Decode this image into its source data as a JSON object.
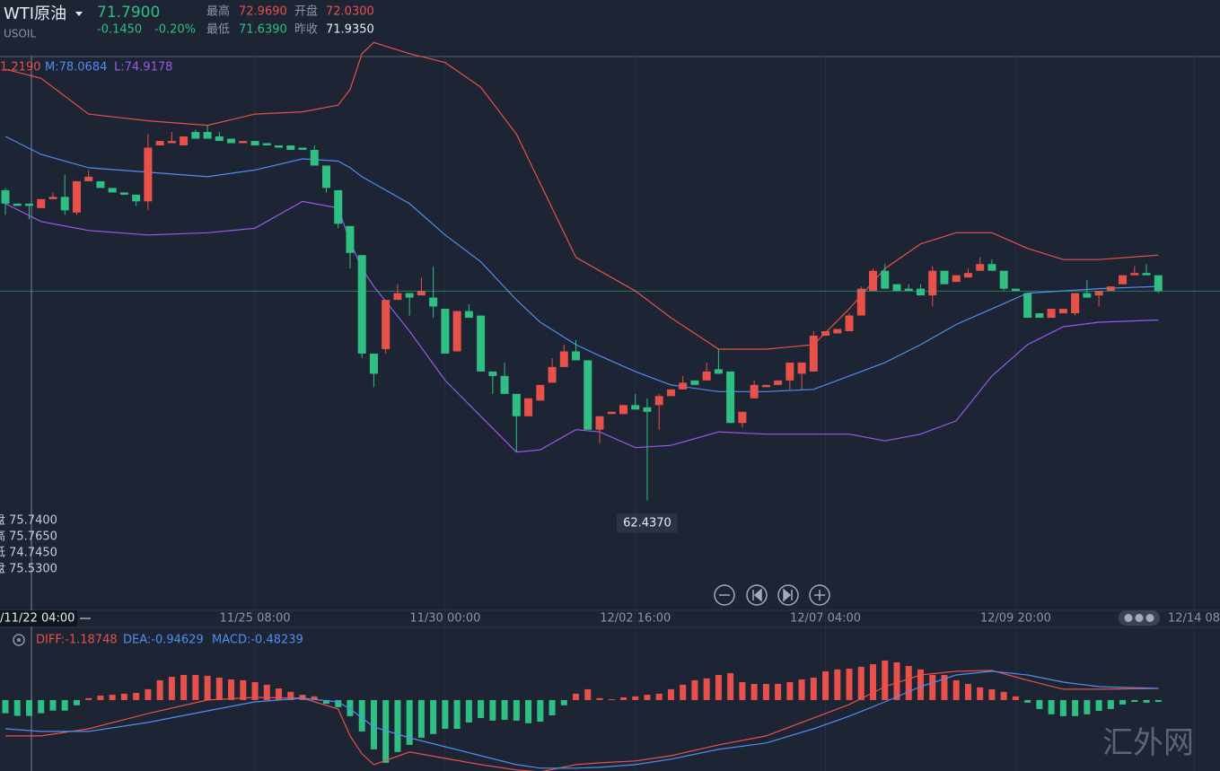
{
  "header": {
    "name": "WTI原油",
    "symbol": "USOIL",
    "price": "71.7900",
    "change": "-0.1450",
    "change_pct": "-0.20%",
    "high_label": "最高",
    "high": "72.9690",
    "open_label": "开盘",
    "open": "72.0300",
    "low_label": "最低",
    "low": "71.6390",
    "prev_label": "昨收",
    "prev": "71.9350"
  },
  "crosshair": {
    "x_label": "/11/22 04:00",
    "lines": [
      "盘 75.7400",
      "高 75.7650",
      "低 74.7450",
      "盘 75.5300"
    ]
  },
  "watermark": "汇外网",
  "chart_data": [
    {
      "type": "candlestick",
      "up_color": "#e8514a",
      "down_color": "#2fbf83",
      "ylim": [
        57.53,
        82.27
      ],
      "xticks": [
        {
          "value": 21,
          "label": "11/25 08:00"
        },
        {
          "value": 37,
          "label": "11/30 00:00"
        },
        {
          "value": 53,
          "label": "12/02 16:00"
        },
        {
          "value": 69,
          "label": "12/07 04:00"
        },
        {
          "value": 85,
          "label": "12/09 20:00"
        },
        {
          "value": 100,
          "label": "12/14 08"
        }
      ],
      "open": [
        76.3,
        75.7,
        75.7,
        75.5,
        75.9,
        76.0,
        75.3,
        76.7,
        76.7,
        76.4,
        76.2,
        76.1,
        75.8,
        78.3,
        78.4,
        78.3,
        78.9,
        78.9,
        78.7,
        78.6,
        78.4,
        78.5,
        78.4,
        78.3,
        78.3,
        78.2,
        78.1,
        77.4,
        76.3,
        74.7,
        73.4,
        69.0,
        69.2,
        71.4,
        71.7,
        71.6,
        71.5,
        71.0,
        69.1,
        70.9,
        70.7,
        68.2,
        68.0,
        67.2,
        66.2,
        66.9,
        67.7,
        68.4,
        69.1,
        68.7,
        65.6,
        66.3,
        66.3,
        66.7,
        66.6,
        66.7,
        67.1,
        67.4,
        67.8,
        67.8,
        68.3,
        68.2,
        65.9,
        67.0,
        67.5,
        67.6,
        67.8,
        68.1,
        68.2,
        69.8,
        69.9,
        70.0,
        70.7,
        71.8,
        72.7,
        72.1,
        71.9,
        71.9,
        71.6,
        72.7,
        72.2,
        72.4,
        72.7,
        73.0,
        72.7,
        71.9,
        71.7,
        70.8,
        70.6,
        70.8,
        70.8,
        71.7,
        71.6,
        71.8,
        72.1,
        72.5,
        72.6,
        72.5
      ],
      "high": [
        76.4,
        75.7,
        75.7,
        75.9,
        76.2,
        77.0,
        76.7,
        77.2,
        76.7,
        76.4,
        76.2,
        76.1,
        78.8,
        78.5,
        78.9,
        78.7,
        79.0,
        79.2,
        78.9,
        78.6,
        78.5,
        78.5,
        78.4,
        78.3,
        78.3,
        78.2,
        78.3,
        77.4,
        76.3,
        74.7,
        73.4,
        69.0,
        71.4,
        72.1,
        71.7,
        72.4,
        72.9,
        71.0,
        70.9,
        71.2,
        70.7,
        68.2,
        68.6,
        67.2,
        67.0,
        67.6,
        68.8,
        69.4,
        69.6,
        68.7,
        66.2,
        66.4,
        66.7,
        67.2,
        67.0,
        67.2,
        67.4,
        68.0,
        67.8,
        68.6,
        69.2,
        68.2,
        66.4,
        67.8,
        67.6,
        67.8,
        68.6,
        68.6,
        70.0,
        70.0,
        70.1,
        70.8,
        72.0,
        72.8,
        73.0,
        72.1,
        72.1,
        72.1,
        72.9,
        72.7,
        72.5,
        72.8,
        73.3,
        73.2,
        72.7,
        71.9,
        71.7,
        70.8,
        71.0,
        71.0,
        71.7,
        72.3,
        71.8,
        72.0,
        72.5,
        72.9,
        73.0,
        72.5
      ],
      "low": [
        75.2,
        75.6,
        75.0,
        75.5,
        75.9,
        75.2,
        75.2,
        76.7,
        76.4,
        76.2,
        76.1,
        75.6,
        75.4,
        78.3,
        78.4,
        78.3,
        78.6,
        78.6,
        78.5,
        78.4,
        78.4,
        78.3,
        78.3,
        78.2,
        78.1,
        78.1,
        77.4,
        76.2,
        74.6,
        72.8,
        68.8,
        67.5,
        69.0,
        71.4,
        70.7,
        71.6,
        70.6,
        69.0,
        69.1,
        70.6,
        68.2,
        67.2,
        67.2,
        64.6,
        66.2,
        66.9,
        67.7,
        68.4,
        68.7,
        65.6,
        65.0,
        66.3,
        66.3,
        66.5,
        62.437,
        65.6,
        67.1,
        67.4,
        67.6,
        67.8,
        68.1,
        65.9,
        65.7,
        67.0,
        67.5,
        67.6,
        67.4,
        67.4,
        68.2,
        69.8,
        69.9,
        70.0,
        70.7,
        71.8,
        71.9,
        71.8,
        71.8,
        71.6,
        71.1,
        72.1,
        72.2,
        72.4,
        72.7,
        72.7,
        71.8,
        71.8,
        70.6,
        70.6,
        70.6,
        70.8,
        70.7,
        71.5,
        71.1,
        71.8,
        72.1,
        72.5,
        72.5,
        71.7
      ],
      "close": [
        75.7,
        75.6,
        75.6,
        75.9,
        76.0,
        75.4,
        76.7,
        76.9,
        76.4,
        76.2,
        76.1,
        75.8,
        78.2,
        78.5,
        78.5,
        78.7,
        78.6,
        78.6,
        78.5,
        78.4,
        78.5,
        78.3,
        78.3,
        78.2,
        78.1,
        78.1,
        77.4,
        76.4,
        74.8,
        73.5,
        69.0,
        68.1,
        71.4,
        71.7,
        71.5,
        71.8,
        71.1,
        69.0,
        70.9,
        70.6,
        68.2,
        68.0,
        67.2,
        66.2,
        67.0,
        67.6,
        68.4,
        69.1,
        68.7,
        65.6,
        66.2,
        66.4,
        66.7,
        66.5,
        66.4,
        67.1,
        67.4,
        67.7,
        67.6,
        68.2,
        68.1,
        65.9,
        66.4,
        67.6,
        67.6,
        67.8,
        68.6,
        68.6,
        69.8,
        70.0,
        70.1,
        70.7,
        71.9,
        72.7,
        71.9,
        71.8,
        71.8,
        71.6,
        72.7,
        72.1,
        72.5,
        72.6,
        73.0,
        72.7,
        71.9,
        71.8,
        70.6,
        70.6,
        71.0,
        71.0,
        71.7,
        71.5,
        71.8,
        72.0,
        72.5,
        72.6,
        72.5,
        71.79
      ],
      "low_label": "62.4370",
      "series": [
        {
          "name": "1.2190",
          "color": "#e8514a",
          "x": [
            0,
            3,
            7,
            12,
            17,
            21,
            25,
            28,
            29,
            30,
            31,
            34,
            37,
            40,
            43,
            45,
            48,
            50,
            53,
            56,
            60,
            64,
            68,
            71,
            74,
            77,
            80,
            83,
            86,
            89,
            92,
            97
          ],
          "values": [
            81.7,
            81.3,
            79.7,
            79.4,
            79.2,
            79.7,
            79.8,
            80.1,
            80.8,
            82.4,
            82.9,
            82.4,
            82.0,
            80.9,
            78.8,
            76.6,
            73.3,
            72.7,
            71.8,
            70.6,
            69.2,
            69.2,
            69.4,
            71.0,
            72.8,
            73.9,
            74.4,
            74.4,
            73.7,
            73.2,
            73.2,
            73.4
          ]
        },
        {
          "name": "M:78.0684",
          "color": "#4f8ef0",
          "x": [
            0,
            3,
            7,
            12,
            17,
            21,
            25,
            28,
            29,
            30,
            31,
            34,
            37,
            40,
            43,
            45,
            48,
            50,
            53,
            56,
            60,
            64,
            68,
            71,
            74,
            77,
            80,
            83,
            86,
            89,
            92,
            97
          ],
          "values": [
            78.7,
            77.9,
            77.3,
            77.1,
            76.9,
            77.2,
            77.7,
            77.6,
            77.3,
            76.9,
            76.6,
            75.7,
            74.3,
            73.1,
            71.4,
            70.4,
            69.4,
            68.9,
            68.2,
            67.6,
            67.3,
            67.3,
            67.4,
            68.0,
            68.6,
            69.4,
            70.3,
            71.0,
            71.7,
            71.8,
            71.9,
            72.0
          ]
        },
        {
          "name": "L:74.9178",
          "color": "#9b59f0",
          "x": [
            0,
            3,
            7,
            12,
            17,
            21,
            25,
            28,
            29,
            30,
            31,
            34,
            37,
            40,
            43,
            45,
            48,
            50,
            53,
            56,
            60,
            64,
            68,
            71,
            74,
            77,
            80,
            83,
            86,
            89,
            92,
            97
          ],
          "values": [
            75.7,
            74.9,
            74.5,
            74.3,
            74.4,
            74.6,
            75.8,
            75.5,
            74.0,
            72.8,
            72.0,
            70.0,
            67.8,
            66.2,
            64.6,
            64.7,
            65.6,
            65.5,
            64.8,
            64.9,
            65.5,
            65.4,
            65.4,
            65.4,
            65.1,
            65.4,
            66.0,
            68.0,
            69.4,
            70.2,
            70.4,
            70.5
          ]
        }
      ]
    },
    {
      "type": "macd",
      "up_color": "#e8514a",
      "down_color": "#2fbf83",
      "ylim": [
        -2.69,
        2.72
      ],
      "macd_label": "MACD:-0.48239",
      "values": [
        -0.5,
        -0.6,
        -0.6,
        -0.5,
        -0.4,
        -0.4,
        -0.2,
        0.07,
        0.17,
        0.2,
        0.24,
        0.27,
        0.41,
        0.75,
        0.88,
        0.95,
        0.95,
        0.92,
        0.85,
        0.78,
        0.75,
        0.68,
        0.58,
        0.44,
        0.31,
        0.2,
        0.14,
        -0.14,
        -0.27,
        -0.61,
        -1.19,
        -1.87,
        -2.38,
        -1.97,
        -1.7,
        -1.43,
        -1.29,
        -1.09,
        -1.09,
        -0.85,
        -0.68,
        -0.78,
        -0.75,
        -0.78,
        -0.88,
        -0.82,
        -0.58,
        -0.2,
        0.24,
        0.41,
        0.07,
        0.03,
        0.1,
        0.14,
        0.2,
        0.24,
        0.41,
        0.58,
        0.75,
        0.82,
        0.95,
        1.02,
        0.68,
        0.61,
        0.61,
        0.61,
        0.68,
        0.78,
        0.85,
        1.09,
        1.16,
        1.19,
        1.26,
        1.36,
        1.5,
        1.43,
        1.29,
        1.16,
        0.95,
        0.95,
        0.75,
        0.61,
        0.48,
        0.41,
        0.31,
        0.14,
        -0.1,
        -0.34,
        -0.54,
        -0.61,
        -0.61,
        -0.54,
        -0.41,
        -0.34,
        -0.17,
        -0.07,
        -0.1,
        -0.07
      ],
      "series": [
        {
          "name": "DIFF:-1.18748",
          "color": "#e8514a",
          "x": [
            0,
            3,
            7,
            12,
            17,
            21,
            25,
            28,
            29,
            30,
            31,
            34,
            37,
            40,
            43,
            45,
            48,
            50,
            53,
            56,
            60,
            64,
            68,
            71,
            74,
            77,
            80,
            83,
            86,
            89,
            92,
            97
          ],
          "values": [
            -1.36,
            -1.36,
            -1.09,
            -0.51,
            0,
            0.1,
            0.07,
            -0.34,
            -1.36,
            -2.04,
            -2.45,
            -1.97,
            -2.21,
            -2.45,
            -2.65,
            -2.72,
            -2.45,
            -2.38,
            -2.31,
            -2.11,
            -1.7,
            -1.36,
            -0.68,
            -0.17,
            0.51,
            0.95,
            1.09,
            1.12,
            0.75,
            0.41,
            0.41,
            0.44
          ]
        },
        {
          "name": "DEA:-0.94629",
          "color": "#4f8ef0",
          "x": [
            0,
            3,
            7,
            12,
            17,
            21,
            25,
            28,
            29,
            30,
            31,
            34,
            37,
            40,
            43,
            45,
            48,
            50,
            53,
            56,
            60,
            64,
            68,
            71,
            74,
            77,
            80,
            83,
            86,
            89,
            92,
            97
          ],
          "values": [
            -1.09,
            -1.19,
            -1.19,
            -0.85,
            -0.41,
            -0.07,
            0.07,
            -0.07,
            -0.34,
            -0.68,
            -1.02,
            -1.43,
            -1.77,
            -2.11,
            -2.45,
            -2.58,
            -2.58,
            -2.55,
            -2.45,
            -2.24,
            -1.87,
            -1.63,
            -1.09,
            -0.61,
            -0.07,
            0.51,
            0.95,
            1.09,
            0.95,
            0.68,
            0.51,
            0.44
          ]
        }
      ]
    }
  ]
}
